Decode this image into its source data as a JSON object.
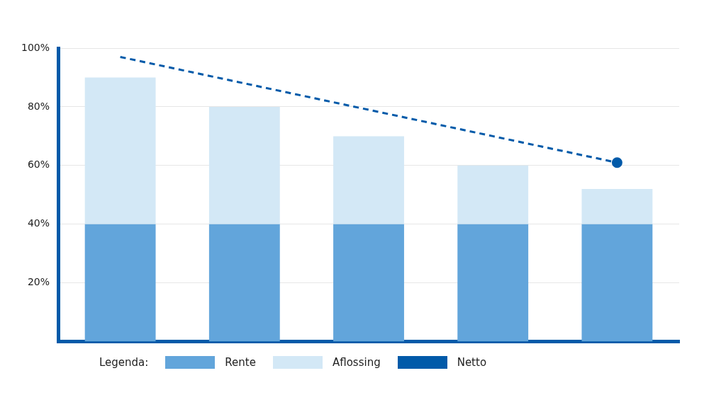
{
  "chart_data": {
    "type": "bar",
    "stacked": true,
    "categories": [
      null,
      null,
      null,
      null,
      null
    ],
    "ylim": [
      0,
      100
    ],
    "yticks": [
      {
        "value": 20,
        "label": "20%"
      },
      {
        "value": 40,
        "label": "40%"
      },
      {
        "value": 60,
        "label": "60%"
      },
      {
        "value": 80,
        "label": "80%"
      },
      {
        "value": 100,
        "label": "100%"
      }
    ],
    "grid": "y",
    "tick_labels": "y",
    "legend": "bottom",
    "legend_title": "Legenda:",
    "series": [
      {
        "name": "Rente",
        "color": "#62a5db",
        "values": [
          40,
          40,
          40,
          40,
          40
        ]
      },
      {
        "name": "Aflossing",
        "color": "#d3e8f6",
        "values": [
          50,
          40,
          30,
          20,
          12
        ]
      },
      {
        "name": "Netto",
        "type": "line",
        "line_style": "dashed",
        "color": "#005aa9",
        "values": [
          97,
          88,
          79,
          70,
          61
        ]
      }
    ]
  }
}
